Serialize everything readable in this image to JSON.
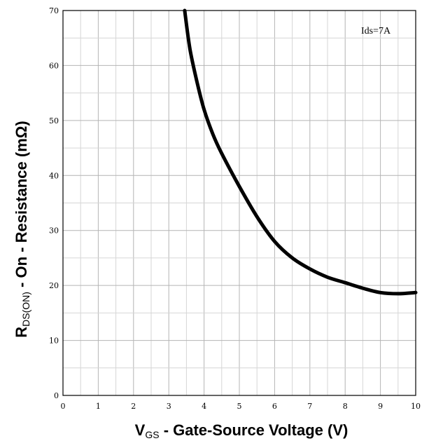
{
  "chart_data": {
    "type": "line",
    "title": "",
    "xlabel": {
      "main": "V",
      "sub": "GS",
      "rest": " - Gate-Source Voltage (V)"
    },
    "ylabel": {
      "main": "R",
      "sub": "DS(ON)",
      "rest": " - On - Resistance (mΩ)"
    },
    "xlim": [
      0,
      10
    ],
    "ylim": [
      0,
      70
    ],
    "x_ticks": [
      "0",
      "1",
      "2",
      "3",
      "4",
      "5",
      "6",
      "7",
      "8",
      "9",
      "10"
    ],
    "y_ticks": [
      "0",
      "10",
      "20",
      "30",
      "40",
      "50",
      "60",
      "70"
    ],
    "grid": true,
    "annotation": "Ids=7A",
    "series": [
      {
        "name": "",
        "color": "#000000",
        "points": [
          [
            3.45,
            70
          ],
          [
            3.6,
            63
          ],
          [
            3.8,
            57
          ],
          [
            4.0,
            52
          ],
          [
            4.25,
            47.5
          ],
          [
            4.5,
            44
          ],
          [
            5.0,
            38
          ],
          [
            5.5,
            32.5
          ],
          [
            6.0,
            28
          ],
          [
            6.5,
            25
          ],
          [
            7.0,
            23
          ],
          [
            7.5,
            21.5
          ],
          [
            8.0,
            20.5
          ],
          [
            8.5,
            19.5
          ],
          [
            9.0,
            18.7
          ],
          [
            9.5,
            18.5
          ],
          [
            10.0,
            18.7
          ]
        ]
      }
    ]
  }
}
